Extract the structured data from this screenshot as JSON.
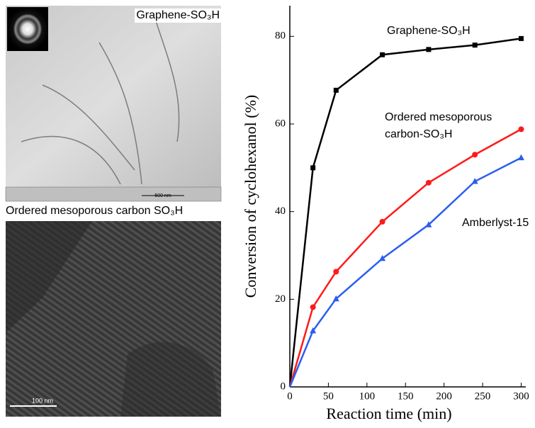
{
  "panels": {
    "top_image_label": "Graphene-SO₃H",
    "top_scale": "500 nm",
    "bottom_image_label": "Ordered mesoporous carbon SO₃H",
    "bottom_scale": "100 nm"
  },
  "chart_data": {
    "type": "line",
    "x_label": "Reaction time (min)",
    "y_label": "Conversion of cyclohexanol (%)",
    "x": [
      0,
      30,
      60,
      120,
      180,
      240,
      300
    ],
    "series": [
      {
        "name": "Graphene-SO₃H",
        "color": "#000000",
        "marker": "square",
        "values": [
          0,
          50,
          67.7,
          75.8,
          77,
          78,
          79.5
        ]
      },
      {
        "name": "Ordered mesoporous carbon-SO₃H",
        "color": "#ff1a1a",
        "marker": "circle",
        "values": [
          0,
          18.2,
          26.3,
          37.7,
          46.6,
          53,
          58.8
        ]
      },
      {
        "name": "Amberlyst-15",
        "color": "#2b5ef0",
        "marker": "triangle",
        "values": [
          0,
          12.8,
          20.1,
          29.3,
          37,
          46.9,
          52.3
        ]
      }
    ],
    "xlim": [
      0,
      306
    ],
    "xticks": [
      0,
      50,
      100,
      150,
      200,
      250,
      300
    ],
    "ylim": [
      0,
      87
    ],
    "yticks": [
      0,
      20,
      40,
      60,
      80
    ],
    "grid": false
  }
}
